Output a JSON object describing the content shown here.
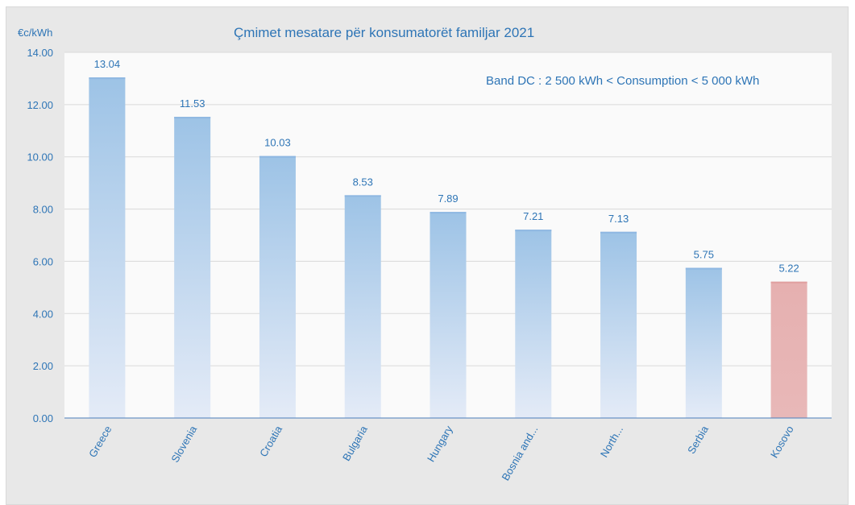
{
  "chart_data": {
    "type": "bar",
    "title": "Çmimet mesatare për konsumatorët familjar 2021",
    "ylabel": "€c/kWh",
    "annotation": "Band DC : 2 500 kWh < Consumption < 5 000 kWh",
    "categories": [
      "Greece",
      "Slovenia",
      "Croatia",
      "Bulgaria",
      "Hungary",
      "Bosnia and...",
      "North...",
      "Serbia",
      "Kosovo"
    ],
    "values": [
      13.04,
      11.53,
      10.03,
      8.53,
      7.89,
      7.21,
      7.13,
      5.75,
      5.22
    ],
    "data_labels": [
      "13.04",
      "11.53",
      "10.03",
      "8.53",
      "7.89",
      "7.21",
      "7.13",
      "5.75",
      "5.22"
    ],
    "ylim": [
      0,
      14
    ],
    "yticks": [
      "0.00",
      "2.00",
      "4.00",
      "6.00",
      "8.00",
      "10.00",
      "12.00",
      "14.00"
    ],
    "grid": true,
    "legend": "none",
    "colors": {
      "bar": "#9dc3e6",
      "bar_fade": "#dae3f3",
      "highlight": "#e6b0b0",
      "highlight_fade": "#f2d0d0",
      "text": "#2e75b6",
      "axis": "#4a7ebb",
      "grid": "#d9d9d9",
      "plot_bg": "#fafafa",
      "frame_bg": "#e8e8e8"
    },
    "highlight_category": "Kosovo"
  }
}
